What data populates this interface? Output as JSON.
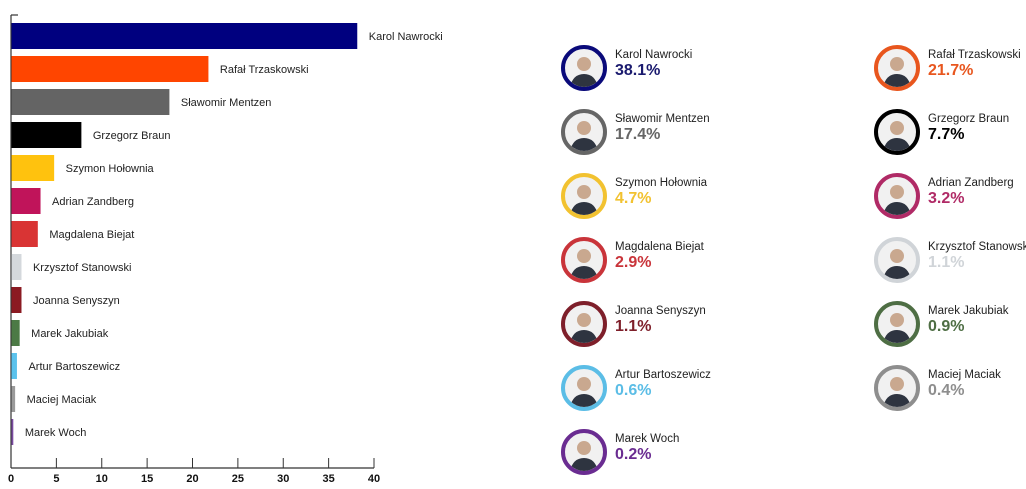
{
  "chart_data": {
    "type": "bar",
    "orientation": "horizontal",
    "title": "",
    "xlabel": "",
    "ylabel": "",
    "xlim": [
      0,
      40
    ],
    "xticks": [
      0,
      5,
      10,
      15,
      20,
      25,
      30,
      35,
      40
    ],
    "grid": false,
    "categories": [
      "Karol Nawrocki",
      "Rafał Trzaskowski",
      "Sławomir Mentzen",
      "Grzegorz Braun",
      "Szymon Hołownia",
      "Adrian Zandberg",
      "Magdalena Biejat",
      "Krzysztof Stanowski",
      "Joanna Senyszyn",
      "Marek Jakubiak",
      "Artur Bartoszewicz",
      "Maciej Maciak",
      "Marek Woch"
    ],
    "values": [
      38.1,
      21.7,
      17.4,
      7.7,
      4.7,
      3.2,
      2.9,
      1.1,
      1.1,
      0.9,
      0.6,
      0.4,
      0.2
    ],
    "colors": [
      "#00007f",
      "#ff4500",
      "#646464",
      "#000000",
      "#ffc20e",
      "#c0145a",
      "#d93434",
      "#d4d8dc",
      "#8b1a22",
      "#4c7a46",
      "#5bc2ec",
      "#9a9a9a",
      "#7a4aa0"
    ]
  },
  "candidates": [
    {
      "name": "Karol Nawrocki",
      "pct": "38.1%",
      "color": "#1a1a6e",
      "ring": "#0a0a7a"
    },
    {
      "name": "Rafał Trzaskowski",
      "pct": "21.7%",
      "color": "#e8561e",
      "ring": "#e8561e"
    },
    {
      "name": "Sławomir Mentzen",
      "pct": "17.4%",
      "color": "#666666",
      "ring": "#666666"
    },
    {
      "name": "Grzegorz Braun",
      "pct": "7.7%",
      "color": "#000000",
      "ring": "#000000"
    },
    {
      "name": "Szymon Hołownia",
      "pct": "4.7%",
      "color": "#f2c230",
      "ring": "#f2c230"
    },
    {
      "name": "Adrian Zandberg",
      "pct": "3.2%",
      "color": "#b02a66",
      "ring": "#b02a66"
    },
    {
      "name": "Magdalena Biejat",
      "pct": "2.9%",
      "color": "#c9343a",
      "ring": "#c9343a"
    },
    {
      "name": "Krzysztof Stanowski",
      "pct": "1.1%",
      "color": "#d0d4d8",
      "ring": "#d0d4d8"
    },
    {
      "name": "Joanna Senyszyn",
      "pct": "1.1%",
      "color": "#7e1f2a",
      "ring": "#7e1f2a"
    },
    {
      "name": "Marek Jakubiak",
      "pct": "0.9%",
      "color": "#4e6e44",
      "ring": "#4e6e44"
    },
    {
      "name": "Artur Bartoszewicz",
      "pct": "0.6%",
      "color": "#5bbde6",
      "ring": "#5bbde6"
    },
    {
      "name": "Maciej Maciak",
      "pct": "0.4%",
      "color": "#8e8e8e",
      "ring": "#8e8e8e"
    },
    {
      "name": "Marek Woch",
      "pct": "0.2%",
      "color": "#6a2c91",
      "ring": "#6a2c91"
    }
  ]
}
